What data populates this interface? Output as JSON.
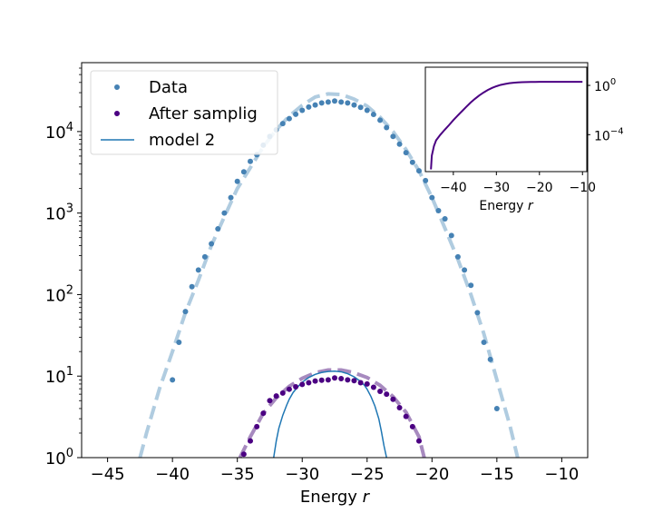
{
  "chart_data": [
    {
      "type": "scatter",
      "xlabel": "Energy $r$",
      "xlabel_parts": {
        "text": "Energy ",
        "var": "r"
      },
      "ylabel": "",
      "xlim": [
        -47,
        -8
      ],
      "ylim": [
        1,
        70000
      ],
      "yscale": "log",
      "x_ticks": [
        -45,
        -40,
        -35,
        -30,
        -25,
        -20,
        -15,
        -10
      ],
      "x_tick_labels": [
        "−45",
        "−40",
        "−35",
        "−30",
        "−25",
        "−20",
        "−15",
        "−10"
      ],
      "y_ticks": [
        1,
        10,
        100,
        1000,
        10000
      ],
      "y_tick_labels": [
        {
          "base": "10",
          "exp": "0"
        },
        {
          "base": "10",
          "exp": "1"
        },
        {
          "base": "10",
          "exp": "2"
        },
        {
          "base": "10",
          "exp": "3"
        },
        {
          "base": "10",
          "exp": "4"
        }
      ],
      "grid": false,
      "legend_position": "upper-left",
      "series": [
        {
          "name": "Data",
          "kind": "points",
          "color": "#4682b4",
          "x": [
            -40,
            -39.5,
            -39,
            -38.5,
            -38,
            -37.5,
            -37,
            -36.5,
            -36,
            -35.5,
            -35,
            -34.5,
            -34,
            -33.5,
            -33,
            -32.5,
            -32,
            -31.5,
            -31,
            -30.5,
            -30,
            -29.5,
            -29,
            -28.5,
            -28,
            -27.5,
            -27,
            -26.5,
            -26,
            -25.5,
            -25,
            -24.5,
            -24,
            -23.5,
            -23,
            -22.5,
            -22,
            -21.5,
            -21,
            -20.5,
            -20,
            -19.5,
            -19,
            -18.5,
            -18,
            -17.5,
            -17,
            -16.5,
            -16,
            -15.5,
            -15
          ],
          "y": [
            9,
            26,
            62,
            125,
            200,
            290,
            420,
            640,
            1000,
            1550,
            2450,
            3200,
            4300,
            5200,
            6800,
            8700,
            10500,
            12500,
            14400,
            16300,
            18200,
            20000,
            21200,
            22400,
            23000,
            23700,
            23000,
            22400,
            21200,
            19800,
            18200,
            16200,
            13800,
            11200,
            8700,
            7000,
            5500,
            4200,
            3300,
            2500,
            1550,
            1070,
            850,
            530,
            290,
            200,
            130,
            60,
            26,
            16,
            4
          ]
        },
        {
          "name": "After samplig",
          "kind": "points",
          "color": "#4b0082",
          "x": [
            -34.5,
            -34,
            -33.5,
            -33,
            -32.5,
            -32,
            -31.5,
            -31,
            -30.5,
            -30,
            -29.5,
            -29,
            -28.5,
            -28,
            -27.5,
            -27,
            -26.5,
            -26,
            -25.5,
            -25,
            -24.5,
            -24,
            -23.5,
            -23,
            -22.5,
            -22,
            -21.5,
            -21
          ],
          "y": [
            1.1,
            1.6,
            2.4,
            3.5,
            5.0,
            5.7,
            6.2,
            6.9,
            7.4,
            7.9,
            8.3,
            8.7,
            8.9,
            9.0,
            9.5,
            9.3,
            9.0,
            8.8,
            8.3,
            8.0,
            7.3,
            6.5,
            6.0,
            5.2,
            4.1,
            3.2,
            2.4,
            1.6
          ]
        },
        {
          "name": "model 2",
          "kind": "line",
          "color": "#1f77b4",
          "x": [
            -32.2,
            -32,
            -31.8,
            -31.5,
            -31.2,
            -31,
            -30.7,
            -30.3,
            -30,
            -29.5,
            -29,
            -28.5,
            -28,
            -27.5,
            -27,
            -26.5,
            -26,
            -25.5,
            -25.2,
            -25,
            -24.7,
            -24.4,
            -24.1,
            -23.9,
            -23.7,
            -23.5
          ],
          "y": [
            1,
            1.6,
            2.3,
            3.3,
            4.4,
            5.2,
            6.3,
            7.5,
            8.4,
            9.6,
            10.5,
            11.1,
            11.4,
            11.5,
            11.3,
            10.7,
            9.8,
            8.6,
            7.7,
            6.9,
            5.6,
            4.3,
            3.0,
            2.1,
            1.4,
            1
          ]
        },
        {
          "name": "",
          "kind": "dashed-line",
          "color": "#b0cce0",
          "x": [
            -42.5,
            -42,
            -41,
            -40,
            -39,
            -38,
            -37,
            -36,
            -35,
            -34,
            -33,
            -32,
            -31,
            -30,
            -29,
            -28,
            -27,
            -26,
            -25,
            -24,
            -23,
            -22,
            -21,
            -20,
            -19,
            -18,
            -17,
            -16,
            -15,
            -14,
            -13.4
          ],
          "y": [
            1,
            2,
            7,
            20,
            60,
            150,
            400,
            900,
            2000,
            3600,
            6500,
            10500,
            15500,
            21000,
            26500,
            29000,
            28500,
            25000,
            20500,
            15000,
            10000,
            6000,
            3300,
            1550,
            650,
            270,
            100,
            33,
            9,
            2.5,
            1
          ]
        },
        {
          "name": "",
          "kind": "dashed-line",
          "color": "#a78abf",
          "x": [
            -34.8,
            -34,
            -33,
            -32,
            -31,
            -30,
            -29,
            -28,
            -27,
            -26,
            -25,
            -24,
            -23,
            -22,
            -21,
            -20.6
          ],
          "y": [
            1,
            1.8,
            3.5,
            5.4,
            7.5,
            9.4,
            11,
            11.9,
            11.9,
            11,
            9.6,
            7.7,
            5.6,
            3.6,
            1.8,
            1
          ]
        }
      ]
    },
    {
      "type": "line",
      "xlabel": "Energy $r$",
      "xlabel_parts": {
        "text": "Energy ",
        "var": "r"
      },
      "ylabel": "",
      "xlim": [
        -46.5,
        -9
      ],
      "ylim": [
        1e-07,
        30
      ],
      "yscale": "log",
      "x_ticks": [
        -40,
        -30,
        -20,
        -10
      ],
      "x_tick_labels": [
        "−40",
        "−30",
        "−20",
        "−10"
      ],
      "y_ticks": [
        0.0001,
        1
      ],
      "y_tick_labels": [
        {
          "base": "10",
          "exp": "−4"
        },
        {
          "base": "10",
          "exp": "0"
        }
      ],
      "y_tick_side": "right",
      "grid": false,
      "series": [
        {
          "name": "",
          "color": "#4b0082",
          "x": [
            -45.2,
            -45,
            -44.5,
            -44,
            -43,
            -42,
            -41,
            -40,
            -39,
            -38,
            -37,
            -36,
            -35,
            -34,
            -33,
            -32,
            -31,
            -30,
            -29,
            -28,
            -27,
            -26,
            -25,
            -24,
            -23,
            -22,
            -21,
            -20,
            -19,
            -18,
            -17,
            -16,
            -15,
            -14,
            -13,
            -12,
            -11,
            -10
          ],
          "y": [
            1.5e-07,
            2e-06,
            1.2e-05,
            3.5e-05,
            0.0001,
            0.00025,
            0.0006,
            0.0015,
            0.0035,
            0.008,
            0.018,
            0.04,
            0.08,
            0.15,
            0.26,
            0.42,
            0.62,
            0.85,
            1.1,
            1.3,
            1.5,
            1.65,
            1.75,
            1.82,
            1.87,
            1.9,
            1.92,
            1.93,
            1.94,
            1.94,
            1.94,
            1.94,
            1.94,
            1.94,
            1.94,
            1.94,
            1.94,
            1.94
          ]
        }
      ]
    }
  ]
}
